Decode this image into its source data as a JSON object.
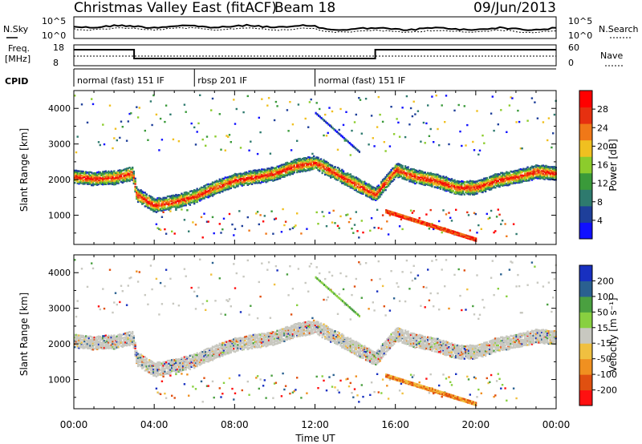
{
  "header": {
    "title": "Christmas Valley East (fitACF)",
    "beam": "Beam 18",
    "date": "09/Jun/2013"
  },
  "noise_panel": {
    "left_label": "N.Sky",
    "right_label": "N.Search",
    "left_ticks": [
      "10^5",
      "10^0"
    ],
    "right_ticks": [
      "10^5",
      "10^0"
    ]
  },
  "freq_panel": {
    "left_label_1": "Freq.",
    "left_label_2": "[MHz]",
    "right_label": "Nave",
    "left_ticks": [
      "18",
      "8"
    ],
    "right_ticks": [
      "60",
      "0"
    ]
  },
  "cpid_panel": {
    "label": "CPID",
    "modes": [
      {
        "name": "normal (fast) 151 IF",
        "start_hour": 0,
        "end_hour": 6
      },
      {
        "name": "rbsp 201 IF",
        "start_hour": 6,
        "end_hour": 12
      },
      {
        "name": "normal (fast) 151 IF",
        "start_hour": 12,
        "end_hour": 24
      }
    ]
  },
  "axes": {
    "xlabel": "Time UT",
    "xticks": [
      "00:00",
      "04:00",
      "08:00",
      "12:00",
      "16:00",
      "20:00",
      "00:00"
    ],
    "ylabel": "Slant Range [km]",
    "yticks": [
      "1000",
      "2000",
      "3000",
      "4000"
    ]
  },
  "power_colorbar": {
    "label": "Power [dB]",
    "ticks": [
      "4",
      "8",
      "12",
      "16",
      "20",
      "24",
      "28"
    ],
    "colors": [
      "#1010ff",
      "#1e3f9a",
      "#2e7a6e",
      "#3a9a3a",
      "#8ccc2c",
      "#f0c020",
      "#f07818",
      "#e63010",
      "#ff0000"
    ]
  },
  "velocity_colorbar": {
    "label": "Velocity [m s⁻¹]",
    "ticks": [
      "200",
      "100",
      "50",
      "15",
      "-15",
      "-50",
      "-100",
      "-200"
    ],
    "colors": [
      "#1830c0",
      "#2a6090",
      "#4aa040",
      "#88d040",
      "#c8c8c0",
      "#f0c040",
      "#f09020",
      "#e05010",
      "#ff1010"
    ]
  },
  "chart_data": {
    "type": "heatmap",
    "title": "Christmas Valley East (fitACF)",
    "xlabel": "Time UT",
    "ylabel": "Slant Range [km]",
    "xlim": [
      0,
      24
    ],
    "ylim": [
      180,
      4500
    ],
    "main_band_power": {
      "x": [
        0,
        1,
        2,
        2.9,
        3.1,
        4,
        5,
        6,
        7,
        8,
        9,
        10,
        11,
        12,
        13,
        14,
        15,
        16,
        17,
        18,
        19,
        20,
        21,
        22,
        23,
        24
      ],
      "range_km": [
        2100,
        2050,
        2080,
        2200,
        1600,
        1300,
        1400,
        1550,
        1800,
        2000,
        2100,
        2200,
        2400,
        2500,
        2200,
        1900,
        1600,
        2300,
        2100,
        2000,
        1800,
        1800,
        2000,
        2100,
        2250,
        2200
      ]
    },
    "power_range_db": [
      0,
      30
    ],
    "velocity_range_ms": [
      -200,
      200
    ]
  }
}
